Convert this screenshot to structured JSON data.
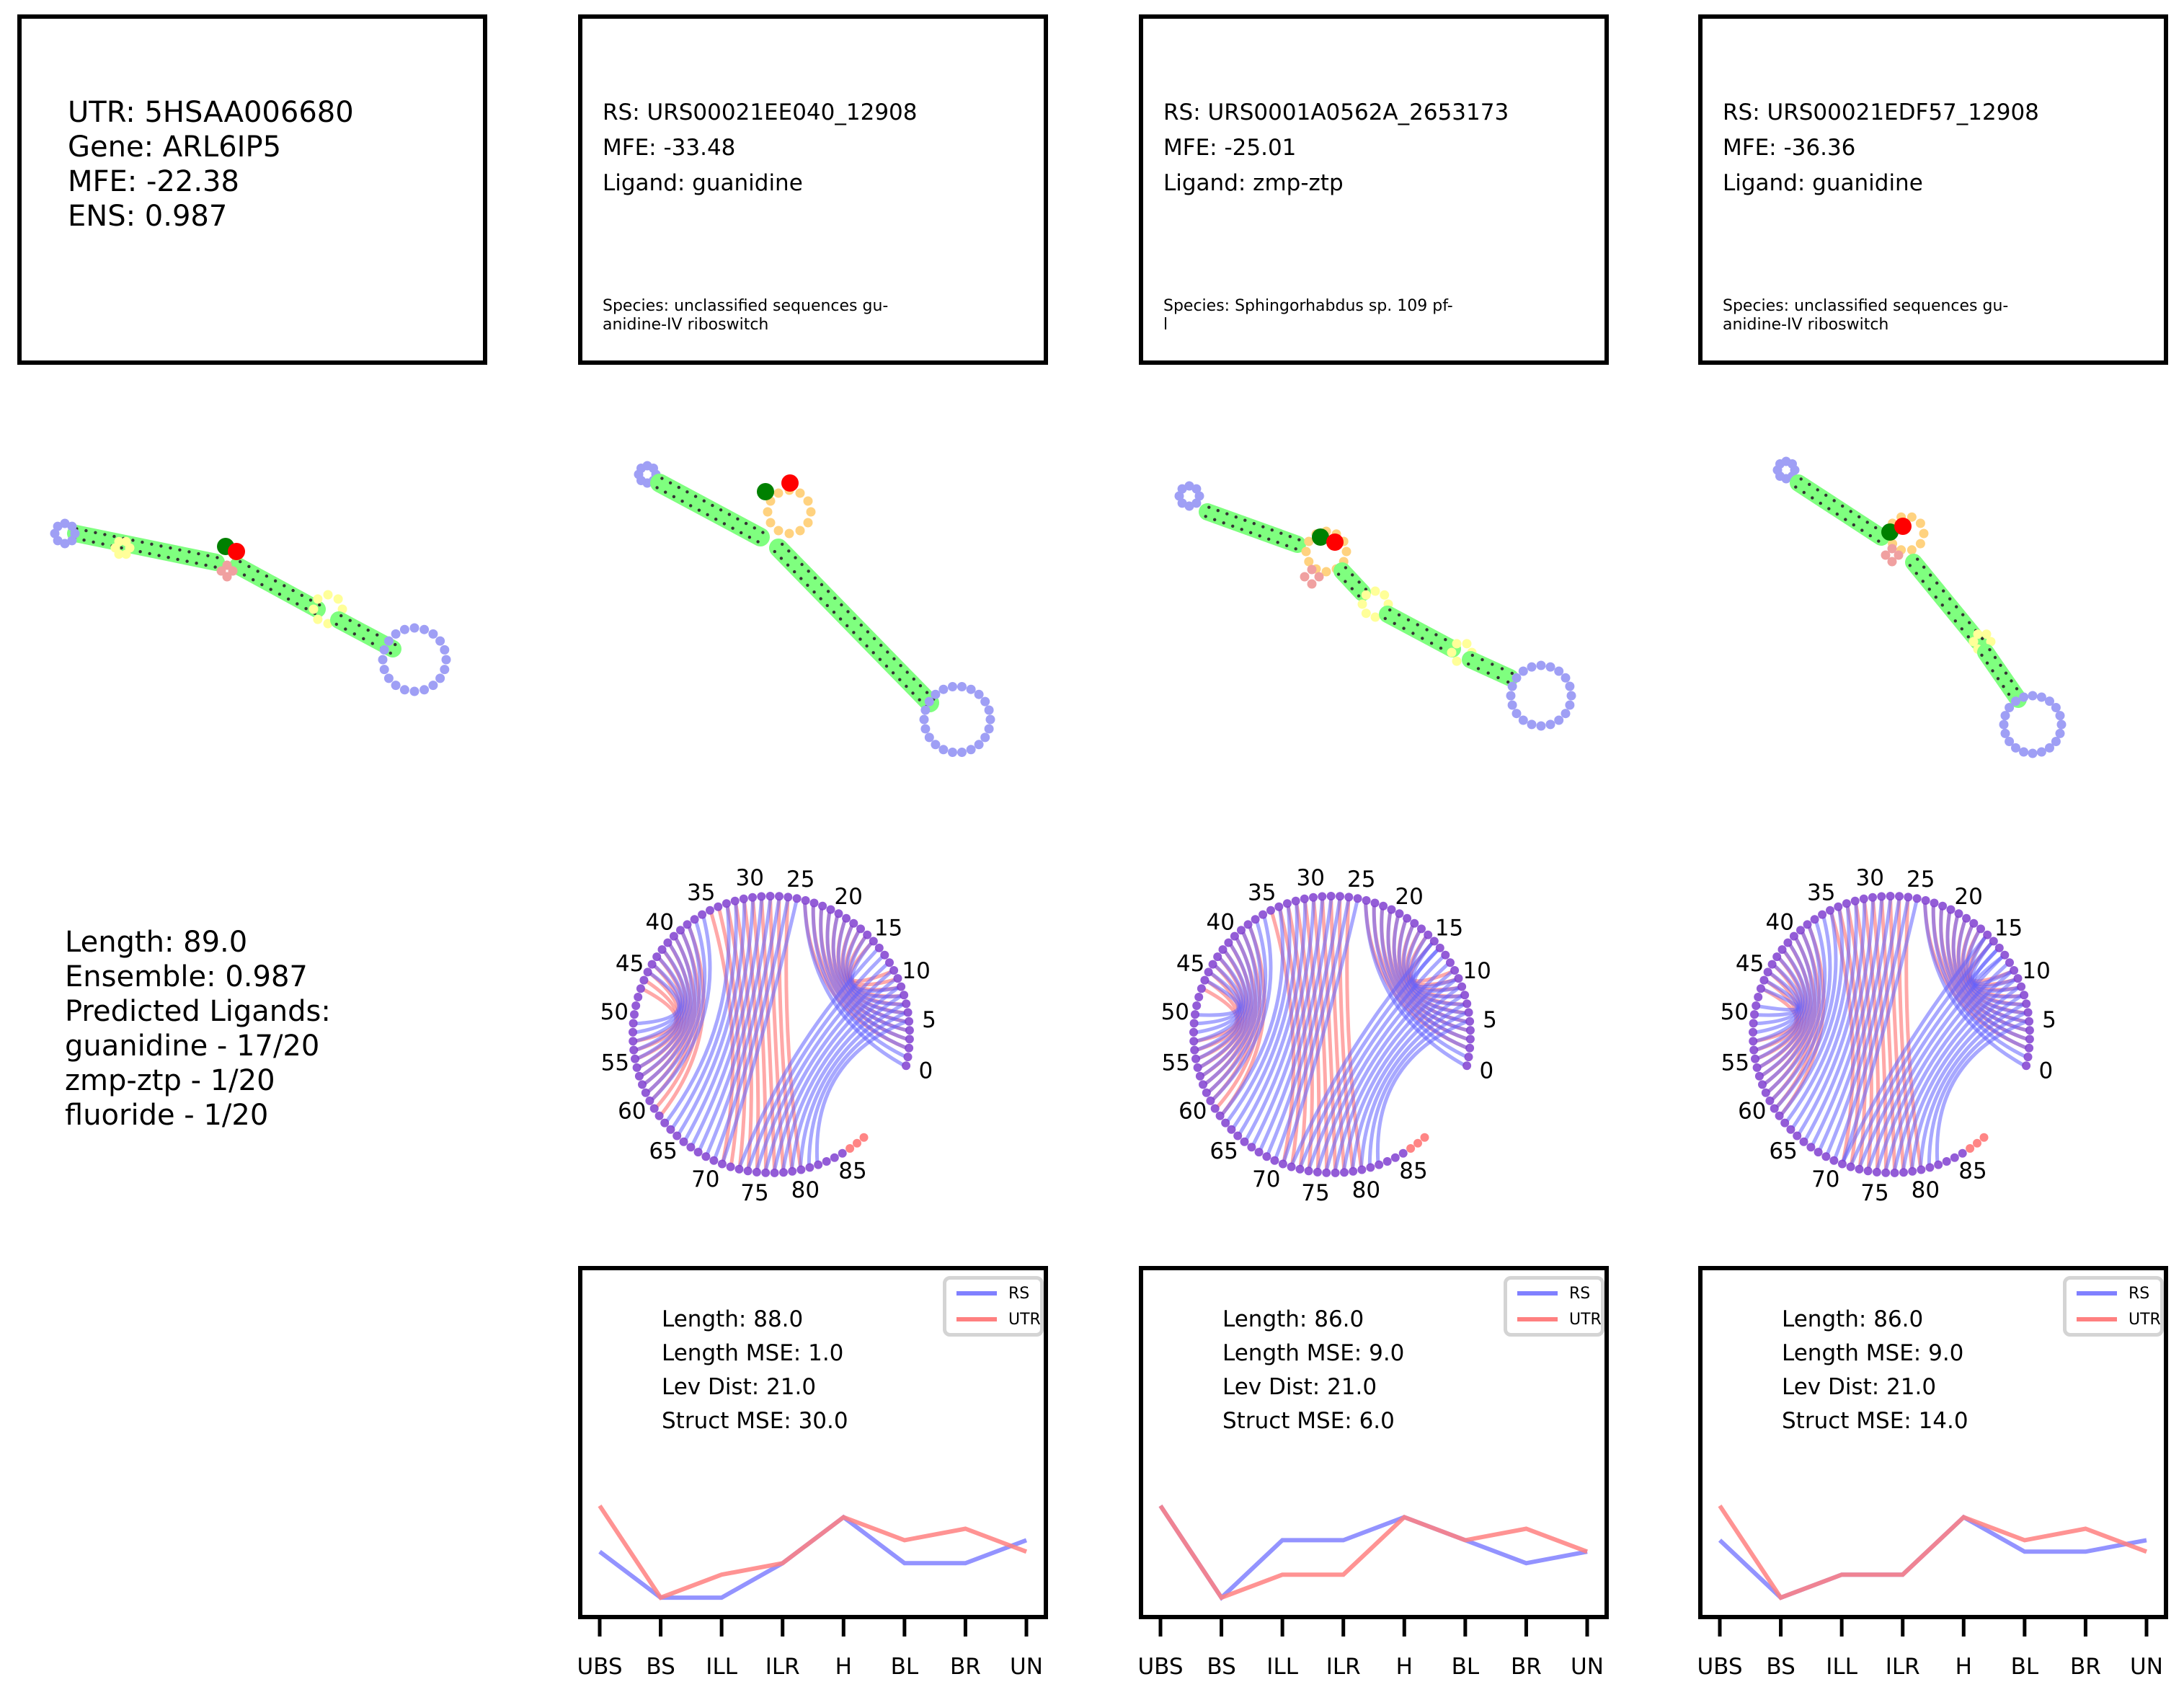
{
  "utr": {
    "utr_line": "UTR: 5HSAA006680",
    "gene_line": "Gene: ARL6IP5",
    "mfe_line": "MFE: -22.38",
    "ens_line": "ENS: 0.987"
  },
  "summary": [
    "Length: 89.0",
    "Ensemble: 0.987",
    "Predicted Ligands:",
    "guanidine - 17/20",
    "zmp-ztp - 1/20",
    "fluoride - 1/20"
  ],
  "rs": [
    {
      "rs_line": "RS: URS00021EE040_12908",
      "mfe_line": "MFE: -33.48",
      "ligand_line": "Ligand: guanidine",
      "species_line1": "Species: unclassified sequences gu-",
      "species_line2": "anidine-IV riboswitch",
      "stats": [
        "Length: 88.0",
        "Length MSE: 1.0",
        "Lev Dist: 21.0",
        "Struct MSE: 30.0"
      ]
    },
    {
      "rs_line": "RS: URS0001A0562A_2653173",
      "mfe_line": "MFE: -25.01",
      "ligand_line": "Ligand: zmp-ztp",
      "species_line1": "Species: Sphingorhabdus sp. 109 pf-",
      "species_line2": "l",
      "stats": [
        "Length: 86.0",
        "Length MSE: 9.0",
        "Lev Dist: 21.0",
        "Struct MSE: 6.0"
      ]
    },
    {
      "rs_line": "RS: URS00021EDF57_12908",
      "mfe_line": "MFE: -36.36",
      "ligand_line": "Ligand: guanidine",
      "species_line1": "Species: unclassified sequences gu-",
      "species_line2": "anidine-IV riboswitch",
      "stats": [
        "Length: 86.0",
        "Length MSE: 9.0",
        "Lev Dist: 21.0",
        "Struct MSE: 14.0"
      ]
    }
  ],
  "legend": {
    "rs": "RS",
    "utr": "UTR"
  },
  "arc_ticks": [
    "0",
    "5",
    "10",
    "15",
    "20",
    "25",
    "30",
    "35",
    "40",
    "45",
    "50",
    "55",
    "60",
    "65",
    "70",
    "75",
    "80",
    "85"
  ],
  "colors": {
    "rs": "#8080ff",
    "utr": "#ff8080",
    "stem": "#7fff7f",
    "hairpin": "#9f9ff5",
    "interior": "#ffff99",
    "multi": "#ffd27f",
    "start": "#008000",
    "end": "#ff0000"
  },
  "chart_data": [
    {
      "type": "line",
      "categories": [
        "UBS",
        "BS",
        "ILL",
        "ILR",
        "H",
        "BL",
        "BR",
        "UN"
      ],
      "series": [
        {
          "name": "RS",
          "values": [
            5,
            1,
            1,
            4,
            8,
            4,
            4,
            6
          ]
        },
        {
          "name": "UTR",
          "values": [
            9,
            1,
            3,
            4,
            8,
            6,
            7,
            5
          ]
        }
      ]
    },
    {
      "type": "line",
      "categories": [
        "UBS",
        "BS",
        "ILL",
        "ILR",
        "H",
        "BL",
        "BR",
        "UN"
      ],
      "series": [
        {
          "name": "RS",
          "values": [
            9,
            1,
            6,
            6,
            8,
            6,
            4,
            5
          ]
        },
        {
          "name": "UTR",
          "values": [
            9,
            1,
            3,
            3,
            8,
            6,
            7,
            5
          ]
        }
      ]
    },
    {
      "type": "line",
      "categories": [
        "UBS",
        "BS",
        "ILL",
        "ILR",
        "H",
        "BL",
        "BR",
        "UN"
      ],
      "series": [
        {
          "name": "RS",
          "values": [
            6,
            1,
            3,
            3,
            8,
            5,
            5,
            6
          ]
        },
        {
          "name": "UTR",
          "values": [
            9,
            1,
            3,
            3,
            8,
            6,
            7,
            5
          ]
        }
      ]
    }
  ]
}
